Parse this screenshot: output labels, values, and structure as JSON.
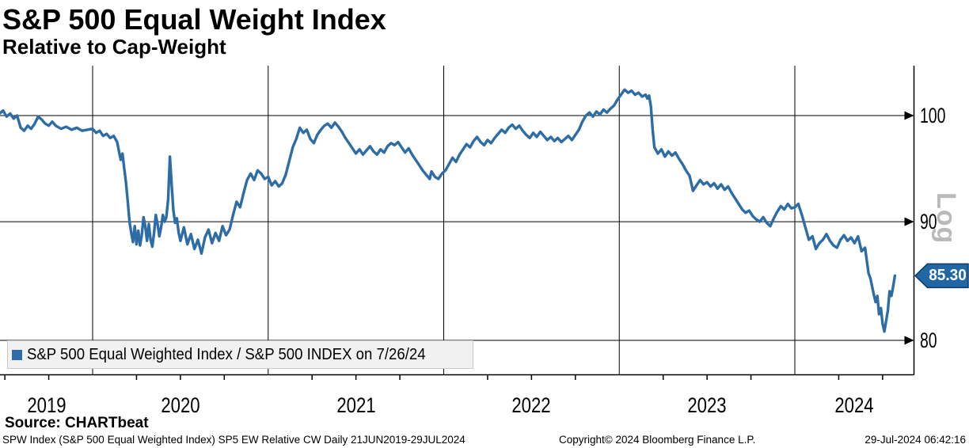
{
  "header": {
    "title": "S&P 500 Equal Weight Index",
    "subtitle": "Relative to Cap-Weight"
  },
  "legend": {
    "label": "S&P 500 Equal Weighted Index / S&P 500 INDEX on 7/26/24",
    "marker_color": "#2e6ca6"
  },
  "last_value": {
    "value": 85.3,
    "label": "85.30",
    "tag_color": "#2166a5",
    "tag_border_color": "#0d3a66"
  },
  "footer": {
    "source": "Source: CHARTbeat",
    "metadata": "SPW Index (S&P 500 Equal Weighted Index) SP5 EW Relative CW  Daily 21JUN2019-29JUL2024",
    "copyright": "Copyright© 2024 Bloomberg Finance L.P.",
    "timestamp": "29-Jul-2024 06:42:16"
  },
  "chart_data": {
    "type": "line",
    "title": "S&P 500 Equal Weight Index",
    "subtitle": "Relative to Cap-Weight",
    "x_axis": {
      "ticks": [
        "2019",
        "2020",
        "2021",
        "2022",
        "2023",
        "2024"
      ],
      "range_start": 2019.47,
      "range_end": 2024.58,
      "minor_tick_interval_years": 0.25,
      "grid": true
    },
    "y_axis": {
      "side": "right",
      "scale": "log",
      "scale_label": "Log",
      "ticks": [
        {
          "value": 100,
          "label": "100"
        },
        {
          "value": 90,
          "label": "90"
        },
        {
          "value": 80,
          "label": "80"
        }
      ],
      "range": [
        77.3,
        105.1
      ],
      "grid": true
    },
    "last_point": {
      "date": "7/26/24",
      "value": 85.3
    },
    "series": [
      {
        "name": "S&P 500 Equal Weighted Index / S&P 500 INDEX",
        "color": "#2e6ca6",
        "points": [
          [
            2019.47,
            100.2
          ],
          [
            2019.49,
            100.5
          ],
          [
            2019.51,
            99.9
          ],
          [
            2019.53,
            100.2
          ],
          [
            2019.55,
            99.7
          ],
          [
            2019.57,
            100.0
          ],
          [
            2019.59,
            98.8
          ],
          [
            2019.61,
            98.5
          ],
          [
            2019.63,
            99.0
          ],
          [
            2019.65,
            98.7
          ],
          [
            2019.67,
            99.2
          ],
          [
            2019.69,
            99.9
          ],
          [
            2019.71,
            99.6
          ],
          [
            2019.73,
            99.2
          ],
          [
            2019.75,
            99.0
          ],
          [
            2019.77,
            99.4
          ],
          [
            2019.79,
            99.0
          ],
          [
            2019.82,
            98.7
          ],
          [
            2019.85,
            98.9
          ],
          [
            2019.88,
            98.6
          ],
          [
            2019.91,
            98.8
          ],
          [
            2019.94,
            98.5
          ],
          [
            2019.97,
            98.6
          ],
          [
            2020.0,
            98.7
          ],
          [
            2020.02,
            98.3
          ],
          [
            2020.04,
            98.5
          ],
          [
            2020.06,
            98.0
          ],
          [
            2020.08,
            98.2
          ],
          [
            2020.1,
            97.8
          ],
          [
            2020.12,
            98.0
          ],
          [
            2020.14,
            97.4
          ],
          [
            2020.15,
            96.5
          ],
          [
            2020.16,
            95.7
          ],
          [
            2020.17,
            96.3
          ],
          [
            2020.18,
            94.9
          ],
          [
            2020.19,
            93.6
          ],
          [
            2020.2,
            91.8
          ],
          [
            2020.21,
            90.0
          ],
          [
            2020.22,
            89.0
          ],
          [
            2020.23,
            88.2
          ],
          [
            2020.24,
            89.6
          ],
          [
            2020.25,
            88.0
          ],
          [
            2020.26,
            89.2
          ],
          [
            2020.27,
            87.9
          ],
          [
            2020.28,
            88.8
          ],
          [
            2020.29,
            90.4
          ],
          [
            2020.3,
            89.6
          ],
          [
            2020.31,
            88.3
          ],
          [
            2020.32,
            89.8
          ],
          [
            2020.33,
            88.4
          ],
          [
            2020.34,
            87.8
          ],
          [
            2020.35,
            89.0
          ],
          [
            2020.36,
            90.6
          ],
          [
            2020.37,
            89.8
          ],
          [
            2020.38,
            88.7
          ],
          [
            2020.39,
            89.5
          ],
          [
            2020.4,
            90.6
          ],
          [
            2020.41,
            90.0
          ],
          [
            2020.42,
            90.4
          ],
          [
            2020.43,
            92.0
          ],
          [
            2020.44,
            96.0
          ],
          [
            2020.45,
            93.4
          ],
          [
            2020.46,
            91.0
          ],
          [
            2020.47,
            89.9
          ],
          [
            2020.48,
            90.3
          ],
          [
            2020.49,
            89.0
          ],
          [
            2020.5,
            88.3
          ],
          [
            2020.52,
            89.5
          ],
          [
            2020.54,
            88.0
          ],
          [
            2020.56,
            88.9
          ],
          [
            2020.58,
            87.6
          ],
          [
            2020.6,
            88.4
          ],
          [
            2020.62,
            87.2
          ],
          [
            2020.64,
            88.6
          ],
          [
            2020.66,
            89.3
          ],
          [
            2020.68,
            88.1
          ],
          [
            2020.7,
            89.0
          ],
          [
            2020.72,
            88.3
          ],
          [
            2020.74,
            89.6
          ],
          [
            2020.76,
            88.8
          ],
          [
            2020.78,
            89.3
          ],
          [
            2020.8,
            90.6
          ],
          [
            2020.82,
            91.8
          ],
          [
            2020.84,
            91.3
          ],
          [
            2020.86,
            92.6
          ],
          [
            2020.88,
            93.8
          ],
          [
            2020.9,
            94.4
          ],
          [
            2020.92,
            93.8
          ],
          [
            2020.94,
            94.7
          ],
          [
            2020.96,
            94.4
          ],
          [
            2020.98,
            93.9
          ],
          [
            2021.0,
            94.1
          ],
          [
            2021.02,
            93.3
          ],
          [
            2021.04,
            93.7
          ],
          [
            2021.06,
            93.2
          ],
          [
            2021.08,
            93.5
          ],
          [
            2021.1,
            94.3
          ],
          [
            2021.12,
            95.6
          ],
          [
            2021.14,
            96.9
          ],
          [
            2021.16,
            97.7
          ],
          [
            2021.18,
            98.8
          ],
          [
            2021.2,
            98.3
          ],
          [
            2021.22,
            98.6
          ],
          [
            2021.24,
            97.7
          ],
          [
            2021.26,
            97.3
          ],
          [
            2021.28,
            98.1
          ],
          [
            2021.3,
            98.6
          ],
          [
            2021.32,
            99.0
          ],
          [
            2021.34,
            99.2
          ],
          [
            2021.36,
            98.8
          ],
          [
            2021.38,
            99.3
          ],
          [
            2021.4,
            98.9
          ],
          [
            2021.42,
            98.4
          ],
          [
            2021.44,
            97.8
          ],
          [
            2021.46,
            97.3
          ],
          [
            2021.48,
            96.8
          ],
          [
            2021.5,
            96.3
          ],
          [
            2021.52,
            96.7
          ],
          [
            2021.54,
            96.2
          ],
          [
            2021.56,
            96.6
          ],
          [
            2021.58,
            97.0
          ],
          [
            2021.6,
            96.5
          ],
          [
            2021.62,
            96.2
          ],
          [
            2021.64,
            96.7
          ],
          [
            2021.66,
            96.4
          ],
          [
            2021.68,
            97.0
          ],
          [
            2021.7,
            97.3
          ],
          [
            2021.72,
            97.1
          ],
          [
            2021.74,
            97.4
          ],
          [
            2021.76,
            96.9
          ],
          [
            2021.78,
            96.4
          ],
          [
            2021.8,
            96.8
          ],
          [
            2021.82,
            96.2
          ],
          [
            2021.84,
            95.7
          ],
          [
            2021.86,
            95.2
          ],
          [
            2021.88,
            94.7
          ],
          [
            2021.9,
            94.3
          ],
          [
            2021.92,
            93.9
          ],
          [
            2021.93,
            94.6
          ],
          [
            2021.95,
            94.1
          ],
          [
            2021.97,
            93.9
          ],
          [
            2021.99,
            94.4
          ],
          [
            2022.01,
            94.7
          ],
          [
            2022.03,
            95.3
          ],
          [
            2022.05,
            95.9
          ],
          [
            2022.07,
            95.5
          ],
          [
            2022.09,
            96.2
          ],
          [
            2022.11,
            96.7
          ],
          [
            2022.13,
            97.2
          ],
          [
            2022.15,
            96.9
          ],
          [
            2022.17,
            97.5
          ],
          [
            2022.19,
            97.9
          ],
          [
            2022.21,
            97.4
          ],
          [
            2022.23,
            97.1
          ],
          [
            2022.25,
            97.6
          ],
          [
            2022.27,
            97.3
          ],
          [
            2022.29,
            97.8
          ],
          [
            2022.31,
            98.2
          ],
          [
            2022.33,
            98.6
          ],
          [
            2022.35,
            98.3
          ],
          [
            2022.37,
            98.8
          ],
          [
            2022.39,
            99.1
          ],
          [
            2022.41,
            98.7
          ],
          [
            2022.43,
            99.0
          ],
          [
            2022.45,
            98.5
          ],
          [
            2022.47,
            98.1
          ],
          [
            2022.49,
            97.8
          ],
          [
            2022.51,
            98.3
          ],
          [
            2022.53,
            97.9
          ],
          [
            2022.55,
            98.4
          ],
          [
            2022.57,
            98.0
          ],
          [
            2022.59,
            97.6
          ],
          [
            2022.61,
            97.9
          ],
          [
            2022.63,
            97.5
          ],
          [
            2022.65,
            97.8
          ],
          [
            2022.67,
            97.4
          ],
          [
            2022.69,
            97.7
          ],
          [
            2022.71,
            98.0
          ],
          [
            2022.73,
            97.6
          ],
          [
            2022.75,
            98.1
          ],
          [
            2022.77,
            98.6
          ],
          [
            2022.79,
            99.4
          ],
          [
            2022.81,
            100.0
          ],
          [
            2022.83,
            100.3
          ],
          [
            2022.85,
            99.9
          ],
          [
            2022.87,
            100.4
          ],
          [
            2022.89,
            100.1
          ],
          [
            2022.91,
            100.6
          ],
          [
            2022.93,
            100.3
          ],
          [
            2022.95,
            100.7
          ],
          [
            2022.97,
            101.0
          ],
          [
            2022.99,
            101.6
          ],
          [
            2023.01,
            102.1
          ],
          [
            2023.03,
            102.6
          ],
          [
            2023.05,
            102.3
          ],
          [
            2023.07,
            102.5
          ],
          [
            2023.09,
            102.1
          ],
          [
            2023.11,
            102.3
          ],
          [
            2023.13,
            101.9
          ],
          [
            2023.15,
            102.1
          ],
          [
            2023.16,
            101.7
          ],
          [
            2023.17,
            102.0
          ],
          [
            2023.18,
            100.9
          ],
          [
            2023.19,
            98.6
          ],
          [
            2023.2,
            96.9
          ],
          [
            2023.22,
            96.3
          ],
          [
            2023.24,
            96.7
          ],
          [
            2023.26,
            96.0
          ],
          [
            2023.28,
            96.5
          ],
          [
            2023.3,
            96.1
          ],
          [
            2023.32,
            96.4
          ],
          [
            2023.34,
            95.8
          ],
          [
            2023.36,
            95.3
          ],
          [
            2023.38,
            94.7
          ],
          [
            2023.4,
            94.2
          ],
          [
            2023.42,
            92.8
          ],
          [
            2023.44,
            93.3
          ],
          [
            2023.46,
            93.8
          ],
          [
            2023.48,
            93.4
          ],
          [
            2023.5,
            93.6
          ],
          [
            2023.52,
            93.2
          ],
          [
            2023.54,
            93.5
          ],
          [
            2023.56,
            93.0
          ],
          [
            2023.58,
            93.4
          ],
          [
            2023.6,
            92.9
          ],
          [
            2023.62,
            93.2
          ],
          [
            2023.64,
            92.6
          ],
          [
            2023.66,
            92.1
          ],
          [
            2023.68,
            91.6
          ],
          [
            2023.7,
            91.1
          ],
          [
            2023.72,
            90.8
          ],
          [
            2023.74,
            91.0
          ],
          [
            2023.76,
            90.5
          ],
          [
            2023.78,
            90.2
          ],
          [
            2023.8,
            90.0
          ],
          [
            2023.82,
            90.4
          ],
          [
            2023.84,
            89.9
          ],
          [
            2023.86,
            89.6
          ],
          [
            2023.88,
            90.3
          ],
          [
            2023.9,
            90.9
          ],
          [
            2023.92,
            91.4
          ],
          [
            2023.94,
            91.1
          ],
          [
            2023.96,
            91.6
          ],
          [
            2023.98,
            91.2
          ],
          [
            2024.0,
            91.3
          ],
          [
            2024.02,
            91.6
          ],
          [
            2024.04,
            90.6
          ],
          [
            2024.06,
            89.5
          ],
          [
            2024.08,
            88.4
          ],
          [
            2024.1,
            88.7
          ],
          [
            2024.12,
            87.6
          ],
          [
            2024.14,
            88.1
          ],
          [
            2024.16,
            88.4
          ],
          [
            2024.18,
            88.9
          ],
          [
            2024.2,
            88.3
          ],
          [
            2024.22,
            87.9
          ],
          [
            2024.24,
            87.7
          ],
          [
            2024.26,
            88.4
          ],
          [
            2024.28,
            88.8
          ],
          [
            2024.3,
            88.3
          ],
          [
            2024.32,
            88.6
          ],
          [
            2024.34,
            88.1
          ],
          [
            2024.36,
            88.7
          ],
          [
            2024.38,
            87.4
          ],
          [
            2024.4,
            87.7
          ],
          [
            2024.42,
            85.5
          ],
          [
            2024.43,
            85.1
          ],
          [
            2024.45,
            83.7
          ],
          [
            2024.46,
            83.1
          ],
          [
            2024.47,
            83.6
          ],
          [
            2024.48,
            82.1
          ],
          [
            2024.49,
            82.6
          ],
          [
            2024.5,
            81.3
          ],
          [
            2024.51,
            80.7
          ],
          [
            2024.53,
            82.4
          ],
          [
            2024.54,
            84.0
          ],
          [
            2024.55,
            83.6
          ],
          [
            2024.56,
            84.4
          ],
          [
            2024.57,
            85.3
          ]
        ]
      }
    ]
  }
}
